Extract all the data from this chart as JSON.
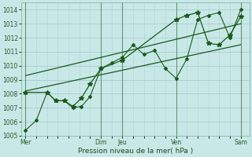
{
  "xlabel": "Pression niveau de la mer( hPa )",
  "ylim": [
    1005,
    1014.5
  ],
  "yticks": [
    1005,
    1006,
    1007,
    1008,
    1009,
    1010,
    1011,
    1012,
    1013,
    1014
  ],
  "major_xtick_positions": [
    0,
    3.5,
    4.5,
    7.0,
    10.0
  ],
  "major_xtick_labels": [
    "Mer",
    "Dim",
    "Jeu",
    "Ven",
    "Sam"
  ],
  "bg_color": "#c8e8e8",
  "grid_major_color": "#a0c8c8",
  "grid_minor_color": "#b8d8d8",
  "dark_vline_color": "#3a6a3a",
  "line_color": "#1a5a1a",
  "series1_x": [
    0.0,
    0.5,
    1.0,
    1.4,
    1.8,
    2.2,
    2.6,
    3.0,
    3.5,
    4.0,
    4.5,
    5.0,
    5.5,
    6.0,
    6.5,
    7.0,
    7.5,
    8.0,
    8.5,
    9.0,
    9.5,
    10.0
  ],
  "series1_y": [
    1005.4,
    1006.1,
    1008.1,
    1007.5,
    1007.5,
    1007.0,
    1007.1,
    1007.8,
    1009.8,
    1010.2,
    1010.6,
    1011.5,
    1010.8,
    1011.1,
    1009.8,
    1009.1,
    1010.5,
    1013.3,
    1013.6,
    1013.8,
    1012.0,
    1014.0
  ],
  "series2_x": [
    0.0,
    1.0,
    1.4,
    1.8,
    2.2,
    2.6,
    3.0,
    3.5,
    4.5,
    7.0,
    7.5,
    8.0,
    8.5,
    9.0,
    9.5,
    10.0
  ],
  "series2_y": [
    1008.1,
    1008.1,
    1007.5,
    1007.5,
    1007.1,
    1007.7,
    1008.7,
    1009.8,
    1010.4,
    1013.3,
    1013.6,
    1013.8,
    1011.6,
    1011.5,
    1012.2,
    1013.5
  ],
  "trend1_x": [
    0.0,
    10.0
  ],
  "trend1_y": [
    1008.2,
    1011.5
  ],
  "trend2_x": [
    0.0,
    10.0
  ],
  "trend2_y": [
    1009.3,
    1013.0
  ],
  "xlim": [
    -0.2,
    10.4
  ]
}
